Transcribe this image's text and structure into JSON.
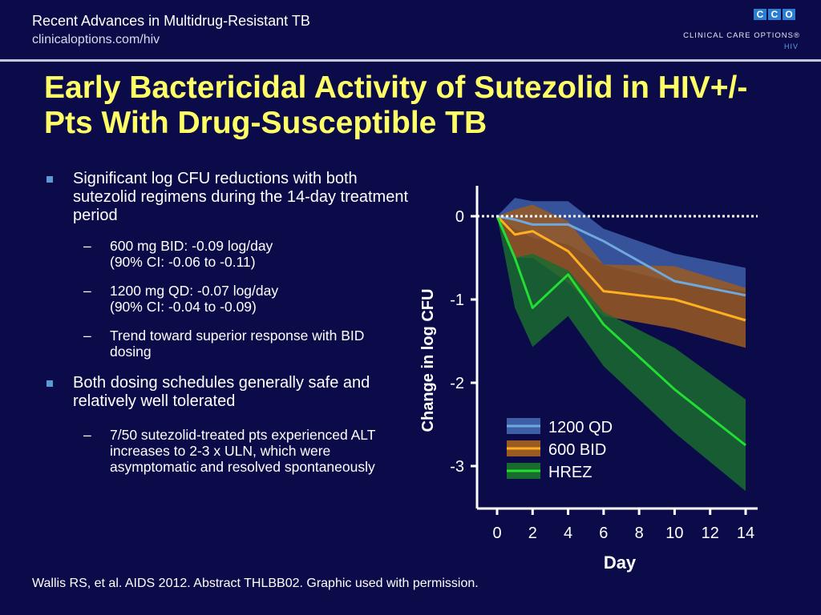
{
  "header": {
    "title": "Recent Advances in Multidrug-Resistant TB",
    "url": "clinicaloptions.com/hiv"
  },
  "logo": {
    "letters": [
      "C",
      "C",
      "O"
    ],
    "name": "CLINICAL CARE OPTIONS®",
    "sub": "HIV",
    "accent": "#2c7fd0"
  },
  "slide_title": "Early Bactericidal Activity of Sutezolid in HIV+/- Pts With Drug-Susceptible TB",
  "bullets": {
    "b1": "Significant log CFU reductions with both sutezolid regimens during the 14-day treatment period",
    "b1_sub1_line1": "600 mg BID: -0.09 log/day",
    "b1_sub1_line2": "(90% CI: -0.06 to -0.11)",
    "b1_sub2_line1": "1200 mg QD: -0.07 log/day",
    "b1_sub2_line2": "(90% CI: -0.04 to -0.09)",
    "b1_sub3": "Trend toward superior response with BID dosing",
    "b2": "Both dosing schedules generally safe and relatively well tolerated",
    "b2_sub1": "7/50 sutezolid-treated pts experienced ALT increases to 2-3 x ULN, which were asymptomatic and resolved spontaneously",
    "dash": "–"
  },
  "citation": "Wallis RS, et al. AIDS 2012. Abstract THLBB02. Graphic used with permission.",
  "colors": {
    "background": "#0b0b4a",
    "title": "#ffff66",
    "bullet": "#5b9bd5"
  },
  "chart_data": {
    "type": "line",
    "xlabel": "Day",
    "ylabel": "Change in log CFU",
    "x_ticks": [
      0,
      2,
      4,
      6,
      8,
      10,
      12,
      14
    ],
    "y_ticks": [
      0,
      -1,
      -2,
      -3
    ],
    "xlim": [
      0,
      14
    ],
    "ylim": [
      -3.5,
      0.4
    ],
    "reference_line": {
      "y": 0,
      "style": "dotted"
    },
    "legend_position": "bottom-right",
    "grid": false,
    "series": [
      {
        "name": "1200 QD",
        "color": "#6fa8dc",
        "band_color": "#3d5fa8",
        "x": [
          0,
          1,
          2,
          4,
          6,
          10,
          14
        ],
        "values": [
          0,
          -0.04,
          -0.1,
          -0.1,
          -0.3,
          -0.78,
          -0.95
        ],
        "upper": [
          0,
          0.22,
          0.18,
          0.18,
          -0.15,
          -0.45,
          -0.62
        ],
        "lower": [
          0,
          -0.16,
          -0.26,
          -0.34,
          -0.58,
          -0.8,
          -0.9
        ]
      },
      {
        "name": "600 BID",
        "color": "#ffb020",
        "band_color": "#9a5a22",
        "x": [
          0,
          1,
          2,
          4,
          6,
          10,
          14
        ],
        "values": [
          0,
          -0.22,
          -0.18,
          -0.42,
          -0.9,
          -1.0,
          -1.25
        ],
        "upper": [
          0,
          0.08,
          0.14,
          -0.06,
          -0.58,
          -0.6,
          -0.86
        ],
        "lower": [
          0,
          -0.5,
          -0.5,
          -0.8,
          -1.2,
          -1.35,
          -1.58
        ]
      },
      {
        "name": "HREZ",
        "color": "#22dd33",
        "band_color": "#1a6b2e",
        "x": [
          0,
          1,
          2,
          4,
          6,
          10,
          14
        ],
        "values": [
          0,
          -0.5,
          -1.1,
          -0.7,
          -1.3,
          -2.08,
          -2.75
        ],
        "upper": [
          0,
          -0.5,
          -0.45,
          -0.65,
          -1.15,
          -1.58,
          -2.2
        ],
        "lower": [
          0,
          -1.1,
          -1.57,
          -1.2,
          -1.8,
          -2.6,
          -3.3
        ]
      }
    ]
  }
}
